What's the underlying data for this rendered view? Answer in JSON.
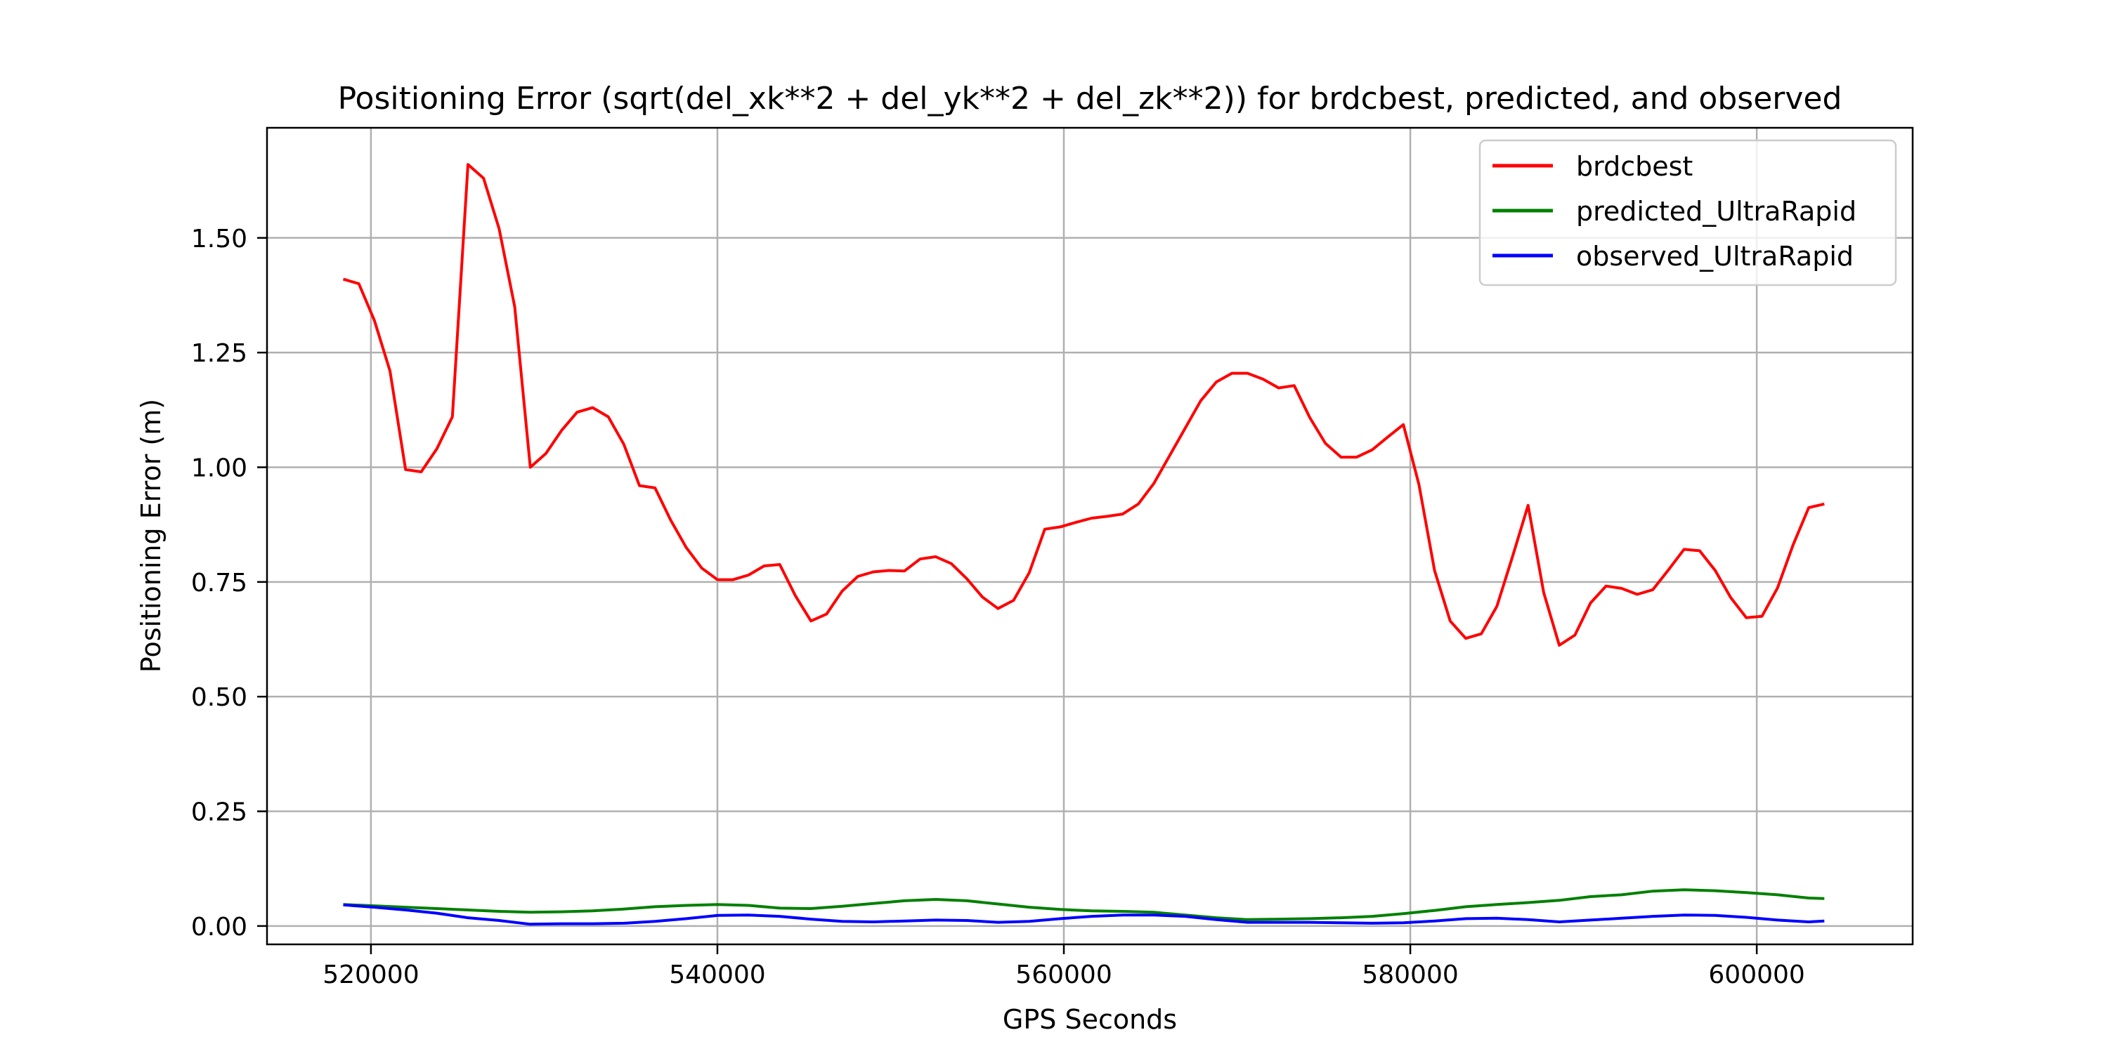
{
  "chart_data": {
    "type": "line",
    "title": "Positioning Error (sqrt(del_xk**2 + del_yk**2 + del_zk**2)) for brdcbest, predicted, and observed",
    "xlabel": "GPS Seconds",
    "ylabel": "Positioning Error (m)",
    "xlim": [
      514000,
      609000
    ],
    "ylim": [
      -0.04,
      1.74
    ],
    "x_ticks": [
      520000,
      540000,
      560000,
      580000,
      600000
    ],
    "x_tick_labels": [
      "520000",
      "540000",
      "560000",
      "580000",
      "600000"
    ],
    "y_ticks": [
      0.0,
      0.25,
      0.5,
      0.75,
      1.0,
      1.25,
      1.5
    ],
    "y_tick_labels": [
      "0.00",
      "0.25",
      "0.50",
      "0.75",
      "1.00",
      "1.25",
      "1.50"
    ],
    "grid": true,
    "legend_position": "upper right",
    "series": [
      {
        "name": "brdcbest",
        "color": "#ff0000",
        "points": [
          [
            518400,
            1.41
          ],
          [
            519300,
            1.4
          ],
          [
            520200,
            1.32
          ],
          [
            521100,
            1.21
          ],
          [
            522000,
            0.995
          ],
          [
            522900,
            0.99
          ],
          [
            523800,
            1.04
          ],
          [
            524700,
            1.11
          ],
          [
            525600,
            1.66
          ],
          [
            526500,
            1.63
          ],
          [
            527400,
            1.52
          ],
          [
            528300,
            1.35
          ],
          [
            529200,
            1.0
          ],
          [
            530100,
            1.03
          ],
          [
            531000,
            1.08
          ],
          [
            531900,
            1.12
          ],
          [
            532800,
            1.13
          ],
          [
            533700,
            1.11
          ],
          [
            534600,
            1.05
          ],
          [
            535500,
            0.96
          ],
          [
            536400,
            0.955
          ],
          [
            537300,
            0.885
          ],
          [
            538200,
            0.825
          ],
          [
            539100,
            0.78
          ],
          [
            540000,
            0.755
          ],
          [
            540900,
            0.755
          ],
          [
            541800,
            0.765
          ],
          [
            542700,
            0.785
          ],
          [
            543600,
            0.788
          ],
          [
            544500,
            0.72
          ],
          [
            545400,
            0.665
          ],
          [
            546300,
            0.68
          ],
          [
            547200,
            0.73
          ],
          [
            548100,
            0.762
          ],
          [
            549000,
            0.772
          ],
          [
            549900,
            0.775
          ],
          [
            550800,
            0.774
          ],
          [
            551700,
            0.8
          ],
          [
            552600,
            0.805
          ],
          [
            553500,
            0.79
          ],
          [
            554400,
            0.757
          ],
          [
            555300,
            0.717
          ],
          [
            556200,
            0.692
          ],
          [
            557100,
            0.71
          ],
          [
            558000,
            0.77
          ],
          [
            558900,
            0.865
          ],
          [
            559800,
            0.87
          ],
          [
            560700,
            0.88
          ],
          [
            561600,
            0.889
          ],
          [
            562500,
            0.893
          ],
          [
            563400,
            0.898
          ],
          [
            564300,
            0.92
          ],
          [
            565200,
            0.965
          ],
          [
            566100,
            1.025
          ],
          [
            567000,
            1.085
          ],
          [
            567900,
            1.145
          ],
          [
            568800,
            1.186
          ],
          [
            569700,
            1.205
          ],
          [
            570600,
            1.205
          ],
          [
            571500,
            1.192
          ],
          [
            572400,
            1.173
          ],
          [
            573300,
            1.178
          ],
          [
            574200,
            1.108
          ],
          [
            575100,
            1.052
          ],
          [
            576000,
            1.022
          ],
          [
            576900,
            1.022
          ],
          [
            577800,
            1.038
          ],
          [
            578700,
            1.066
          ],
          [
            579600,
            1.093
          ],
          [
            580500,
            0.962
          ],
          [
            581400,
            0.775
          ],
          [
            582300,
            0.665
          ],
          [
            583200,
            0.627
          ],
          [
            584100,
            0.637
          ],
          [
            585000,
            0.697
          ],
          [
            585900,
            0.805
          ],
          [
            586800,
            0.917
          ],
          [
            587700,
            0.727
          ],
          [
            588600,
            0.612
          ],
          [
            589500,
            0.634
          ],
          [
            590400,
            0.704
          ],
          [
            591300,
            0.741
          ],
          [
            592200,
            0.736
          ],
          [
            593100,
            0.723
          ],
          [
            594000,
            0.733
          ],
          [
            594900,
            0.776
          ],
          [
            595800,
            0.821
          ],
          [
            596700,
            0.818
          ],
          [
            597600,
            0.775
          ],
          [
            598500,
            0.716
          ],
          [
            599400,
            0.672
          ],
          [
            600300,
            0.675
          ],
          [
            601200,
            0.737
          ],
          [
            602100,
            0.831
          ],
          [
            603000,
            0.912
          ],
          [
            603900,
            0.92
          ]
        ]
      },
      {
        "name": "predicted_UltraRapid",
        "color": "#008000",
        "points": [
          [
            518400,
            0.047
          ],
          [
            520200,
            0.044
          ],
          [
            522000,
            0.041
          ],
          [
            523800,
            0.038
          ],
          [
            525600,
            0.035
          ],
          [
            527400,
            0.032
          ],
          [
            529200,
            0.03
          ],
          [
            531000,
            0.031
          ],
          [
            532800,
            0.033
          ],
          [
            534600,
            0.037
          ],
          [
            536400,
            0.042
          ],
          [
            538200,
            0.045
          ],
          [
            540000,
            0.047
          ],
          [
            541800,
            0.045
          ],
          [
            543600,
            0.039
          ],
          [
            545400,
            0.038
          ],
          [
            547200,
            0.043
          ],
          [
            549000,
            0.049
          ],
          [
            550800,
            0.055
          ],
          [
            552600,
            0.058
          ],
          [
            554400,
            0.055
          ],
          [
            556200,
            0.048
          ],
          [
            558000,
            0.041
          ],
          [
            559800,
            0.036
          ],
          [
            561600,
            0.033
          ],
          [
            563400,
            0.032
          ],
          [
            565200,
            0.03
          ],
          [
            567000,
            0.024
          ],
          [
            568800,
            0.018
          ],
          [
            570600,
            0.014
          ],
          [
            572400,
            0.015
          ],
          [
            574200,
            0.016
          ],
          [
            576000,
            0.018
          ],
          [
            577800,
            0.021
          ],
          [
            579600,
            0.027
          ],
          [
            581400,
            0.034
          ],
          [
            583200,
            0.042
          ],
          [
            585000,
            0.047
          ],
          [
            586800,
            0.051
          ],
          [
            588600,
            0.056
          ],
          [
            590400,
            0.064
          ],
          [
            592200,
            0.068
          ],
          [
            594000,
            0.076
          ],
          [
            595800,
            0.079
          ],
          [
            597600,
            0.077
          ],
          [
            599400,
            0.073
          ],
          [
            601200,
            0.068
          ],
          [
            603000,
            0.061
          ],
          [
            603900,
            0.06
          ]
        ]
      },
      {
        "name": "observed_UltraRapid",
        "color": "#0000ff",
        "points": [
          [
            518400,
            0.046
          ],
          [
            520200,
            0.041
          ],
          [
            522000,
            0.035
          ],
          [
            523800,
            0.028
          ],
          [
            525600,
            0.018
          ],
          [
            527400,
            0.012
          ],
          [
            529200,
            0.004
          ],
          [
            531000,
            0.005
          ],
          [
            532800,
            0.005
          ],
          [
            534600,
            0.006
          ],
          [
            536400,
            0.01
          ],
          [
            538200,
            0.016
          ],
          [
            540000,
            0.023
          ],
          [
            541800,
            0.024
          ],
          [
            543600,
            0.021
          ],
          [
            545400,
            0.015
          ],
          [
            547200,
            0.01
          ],
          [
            549000,
            0.009
          ],
          [
            550800,
            0.011
          ],
          [
            552600,
            0.013
          ],
          [
            554400,
            0.012
          ],
          [
            556200,
            0.008
          ],
          [
            558000,
            0.01
          ],
          [
            559800,
            0.016
          ],
          [
            561600,
            0.021
          ],
          [
            563400,
            0.024
          ],
          [
            565200,
            0.024
          ],
          [
            567000,
            0.021
          ],
          [
            568800,
            0.014
          ],
          [
            570600,
            0.008
          ],
          [
            572400,
            0.008
          ],
          [
            574200,
            0.008
          ],
          [
            576000,
            0.007
          ],
          [
            577800,
            0.006
          ],
          [
            579600,
            0.007
          ],
          [
            581400,
            0.011
          ],
          [
            583200,
            0.016
          ],
          [
            585000,
            0.017
          ],
          [
            586800,
            0.014
          ],
          [
            588600,
            0.009
          ],
          [
            590400,
            0.013
          ],
          [
            592200,
            0.017
          ],
          [
            594000,
            0.021
          ],
          [
            595800,
            0.024
          ],
          [
            597600,
            0.023
          ],
          [
            599400,
            0.019
          ],
          [
            601200,
            0.013
          ],
          [
            603000,
            0.009
          ],
          [
            603900,
            0.011
          ]
        ]
      }
    ]
  }
}
